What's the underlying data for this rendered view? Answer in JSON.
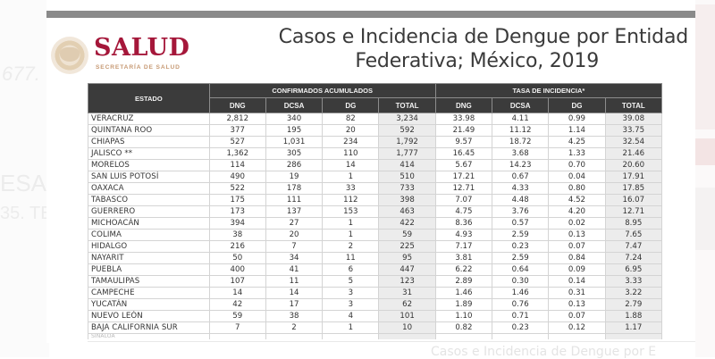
{
  "background": {
    "left_ghost_texts": [
      "677.",
      "ESA",
      "35. TE"
    ],
    "bottom_ghost_text": "Casos e Incidencia de Dengue por E"
  },
  "logo": {
    "emblem": "mexico-coat-of-arms-emblem",
    "name": "SALUD",
    "subtitle": "SECRETARÍA DE SALUD",
    "brand_color": "#a5173a"
  },
  "title": {
    "line1": "Casos  e Incidencia de Dengue por Entidad",
    "line2": "Federativa; México, 2019"
  },
  "table": {
    "header": {
      "estado": "ESTADO",
      "groups": [
        "CONFIRMADOS ACUMULADOS",
        "TASA DE INCIDENCIA*"
      ],
      "columns": [
        "DNG",
        "DCSA",
        "DG",
        "TOTAL",
        "DNG",
        "DCSA",
        "DG",
        "TOTAL"
      ]
    },
    "rows": [
      {
        "estado": "VERACRUZ",
        "c": [
          "2,812",
          "340",
          "82",
          "3,234"
        ],
        "t": [
          "33.98",
          "4.11",
          "0.99",
          "39.08"
        ]
      },
      {
        "estado": "QUINTANA ROO",
        "c": [
          "377",
          "195",
          "20",
          "592"
        ],
        "t": [
          "21.49",
          "11.12",
          "1.14",
          "33.75"
        ]
      },
      {
        "estado": "CHIAPAS",
        "c": [
          "527",
          "1,031",
          "234",
          "1,792"
        ],
        "t": [
          "9.57",
          "18.72",
          "4.25",
          "32.54"
        ]
      },
      {
        "estado": "JALISCO **",
        "c": [
          "1,362",
          "305",
          "110",
          "1,777"
        ],
        "t": [
          "16.45",
          "3.68",
          "1.33",
          "21.46"
        ]
      },
      {
        "estado": "MORELOS",
        "c": [
          "114",
          "286",
          "14",
          "414"
        ],
        "t": [
          "5.67",
          "14.23",
          "0.70",
          "20.60"
        ]
      },
      {
        "estado": "SAN LUIS POTOSÍ",
        "c": [
          "490",
          "19",
          "1",
          "510"
        ],
        "t": [
          "17.21",
          "0.67",
          "0.04",
          "17.91"
        ]
      },
      {
        "estado": "OAXACA",
        "c": [
          "522",
          "178",
          "33",
          "733"
        ],
        "t": [
          "12.71",
          "4.33",
          "0.80",
          "17.85"
        ]
      },
      {
        "estado": "TABASCO",
        "c": [
          "175",
          "111",
          "112",
          "398"
        ],
        "t": [
          "7.07",
          "4.48",
          "4.52",
          "16.07"
        ]
      },
      {
        "estado": "GUERRERO",
        "c": [
          "173",
          "137",
          "153",
          "463"
        ],
        "t": [
          "4.75",
          "3.76",
          "4.20",
          "12.71"
        ]
      },
      {
        "estado": "MICHOACÁN",
        "c": [
          "394",
          "27",
          "1",
          "422"
        ],
        "t": [
          "8.36",
          "0.57",
          "0.02",
          "8.95"
        ]
      },
      {
        "estado": "COLIMA",
        "c": [
          "38",
          "20",
          "1",
          "59"
        ],
        "t": [
          "4.93",
          "2.59",
          "0.13",
          "7.65"
        ]
      },
      {
        "estado": "HIDALGO",
        "c": [
          "216",
          "7",
          "2",
          "225"
        ],
        "t": [
          "7.17",
          "0.23",
          "0.07",
          "7.47"
        ]
      },
      {
        "estado": "NAYARIT",
        "c": [
          "50",
          "34",
          "11",
          "95"
        ],
        "t": [
          "3.81",
          "2.59",
          "0.84",
          "7.24"
        ]
      },
      {
        "estado": "PUEBLA",
        "c": [
          "400",
          "41",
          "6",
          "447"
        ],
        "t": [
          "6.22",
          "0.64",
          "0.09",
          "6.95"
        ]
      },
      {
        "estado": "TAMAULIPAS",
        "c": [
          "107",
          "11",
          "5",
          "123"
        ],
        "t": [
          "2.89",
          "0.30",
          "0.14",
          "3.33"
        ]
      },
      {
        "estado": "CAMPECHE",
        "c": [
          "14",
          "14",
          "3",
          "31"
        ],
        "t": [
          "1.46",
          "1.46",
          "0.31",
          "3.22"
        ]
      },
      {
        "estado": "YUCATÁN",
        "c": [
          "42",
          "17",
          "3",
          "62"
        ],
        "t": [
          "1.89",
          "0.76",
          "0.13",
          "2.79"
        ]
      },
      {
        "estado": "NUEVO LEÓN",
        "c": [
          "59",
          "38",
          "4",
          "101"
        ],
        "t": [
          "1.10",
          "0.71",
          "0.07",
          "1.88"
        ]
      },
      {
        "estado": "BAJA CALIFORNIA SUR",
        "c": [
          "7",
          "2",
          "1",
          "10"
        ],
        "t": [
          "0.82",
          "0.23",
          "0.12",
          "1.17"
        ]
      }
    ],
    "cut_row": {
      "estado": "SINALOA",
      "c": [
        "",
        "",
        "",
        ""
      ],
      "t": [
        "",
        "",
        "",
        ""
      ]
    }
  },
  "colors": {
    "header_bg": "#3b3b3b",
    "header_text": "#f2f2f2",
    "total_col_bg": "#ececec",
    "top_bar": "#8a8a8a",
    "title_text": "#3a3a3a"
  }
}
